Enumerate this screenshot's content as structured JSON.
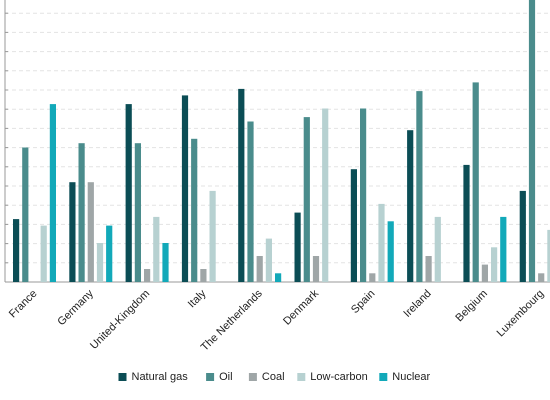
{
  "chart_data": {
    "type": "bar",
    "title": "",
    "xlabel": "",
    "ylabel": "",
    "ylim": [
      0,
      13
    ],
    "grid": true,
    "legend_position": "bottom",
    "categories": [
      "France",
      "Germany",
      "United-Kingdom",
      "Italy",
      "The Netherlands",
      "Denmark",
      "Spain",
      "Ireland",
      "Belgium",
      "Luxembourg"
    ],
    "series": [
      {
        "name": "Natural gas",
        "color": "#0b4d55",
        "values": [
          2.9,
          4.6,
          8.2,
          8.6,
          8.9,
          3.2,
          5.2,
          7.0,
          5.4,
          4.2
        ]
      },
      {
        "name": "Oil",
        "color": "#4a8c8c",
        "values": [
          6.2,
          6.4,
          6.4,
          6.6,
          7.4,
          7.6,
          8.0,
          8.8,
          9.2,
          13.0
        ]
      },
      {
        "name": "Coal",
        "color": "#9fa6a7",
        "values": [
          0.0,
          4.6,
          0.6,
          0.6,
          1.2,
          1.2,
          0.4,
          1.2,
          0.8,
          0.4
        ]
      },
      {
        "name": "Low-carbon",
        "color": "#b7d1d1",
        "values": [
          2.6,
          1.8,
          3.0,
          4.2,
          2.0,
          8.0,
          3.6,
          3.0,
          1.6,
          2.4
        ]
      },
      {
        "name": "Nuclear",
        "color": "#12a9b9",
        "values": [
          8.2,
          2.6,
          1.8,
          0.0,
          0.4,
          0.0,
          2.8,
          0.0,
          3.0,
          0.0
        ]
      }
    ]
  }
}
